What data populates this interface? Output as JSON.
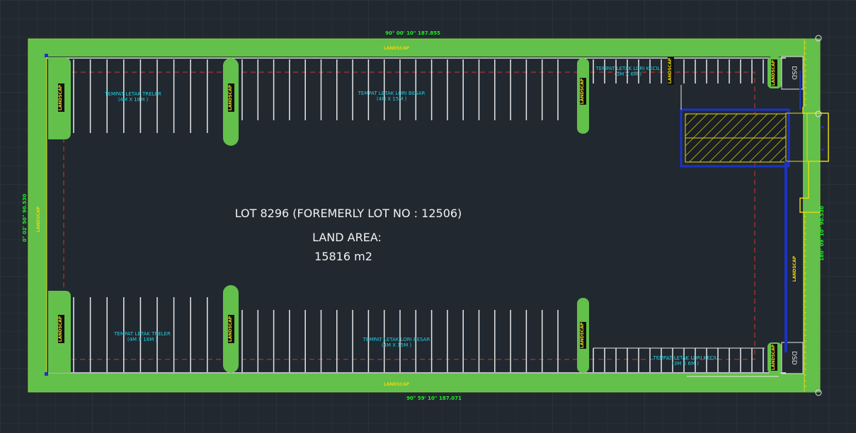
{
  "title": {
    "lot": "LOT 8296 (FOREMERLY LOT NO : 12506)",
    "area_label": "LAND AREA:",
    "area_value": "15816 m2"
  },
  "bearings": {
    "top": "90°   00'   10\"   187.855",
    "bottom": "90°   59'   10\"   187.071",
    "left": "0°   02'   50\"   90.530",
    "right": "180°   09'   10\"   90.530"
  },
  "landscape_label": "LANDSCAP",
  "dsd_label": "DSD",
  "parking_labels": {
    "top_treler": {
      "line1": "TEMPAT LETAK TRELER",
      "line2": "(4M X 18M )"
    },
    "top_lori_besar": {
      "line1": "TEMPAT LETAK LORI BESAR",
      "line2": "(4M X 15M )"
    },
    "top_lori_kecil": {
      "line1": "TEMPAT LETAK LORI KECIL",
      "line2": "(3M X 6M )"
    },
    "bottom_treler": {
      "line1": "TEMPAT LETAK TRELER",
      "line2": "(4M X 18M )"
    },
    "bottom_lori_besar": {
      "line1": "TEMPAT LETAK LORI BESAR",
      "line2": "(4M X 15M )"
    },
    "bottom_lori_kecil": {
      "line1": "TEMPAT LETAK LORI KECIL",
      "line2": "(3M X 6M )"
    }
  },
  "colors": {
    "background": "#212830",
    "landscape": "#63c04a",
    "landscape_edge": "#8ad44a",
    "parking_line": "#e8e8e8",
    "setback_line": "#d9342b",
    "cyan_text": "#1fd0e0",
    "yellow": "#e6d60f",
    "bearing_text": "#22ee22",
    "blue": "#1b33c6",
    "white_text": "#f2f2f2"
  }
}
